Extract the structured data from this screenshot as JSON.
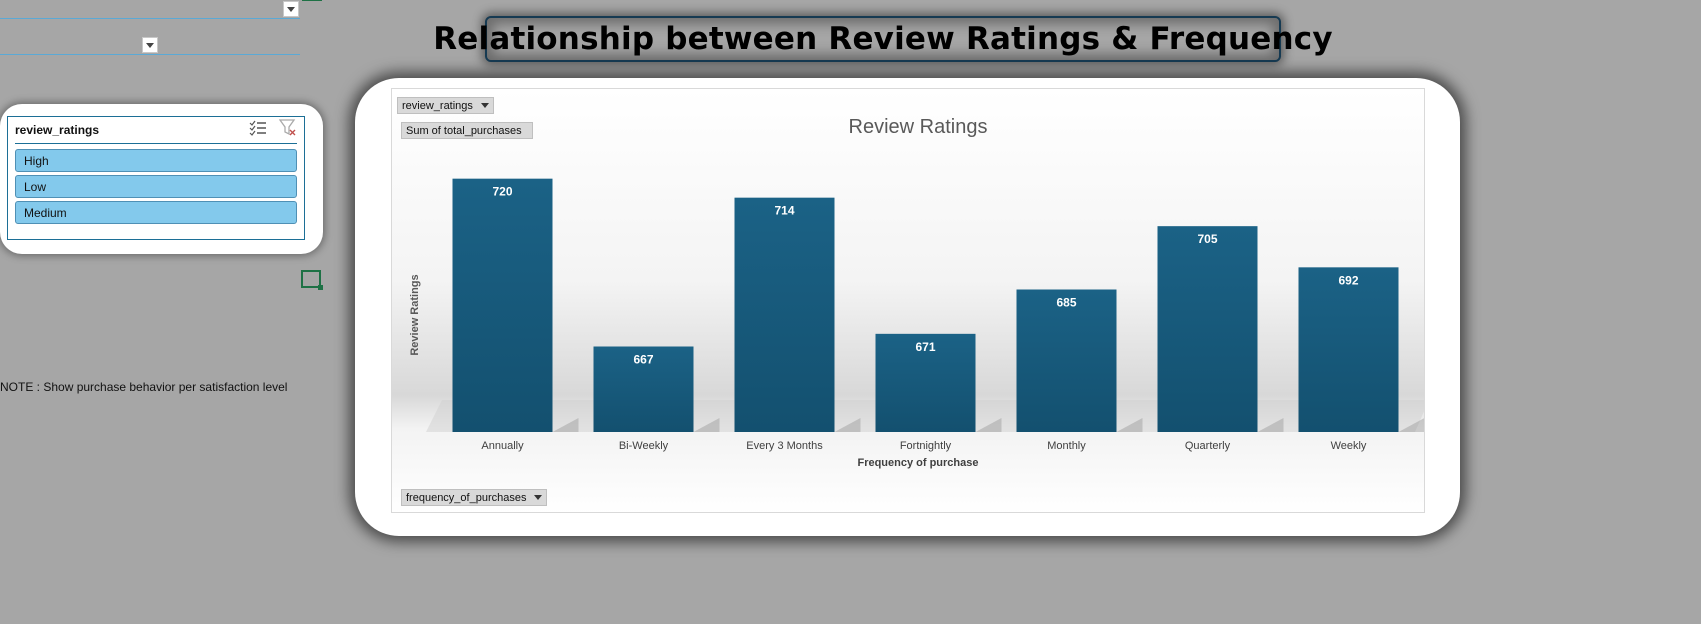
{
  "page": {
    "title": "Relationship between Review Ratings & Frequency",
    "note": "NOTE : Show purchase behavior per satisfaction level"
  },
  "slicer": {
    "title": "review_ratings",
    "items": [
      {
        "label": "High"
      },
      {
        "label": "Low"
      },
      {
        "label": "Medium"
      }
    ],
    "item_color": "#83c9ec"
  },
  "pivot_buttons": {
    "filter": "review_ratings",
    "values": "Sum of total_purchases",
    "axis": "frequency_of_purchases"
  },
  "chart_data": {
    "type": "bar",
    "title": "Review Ratings",
    "xlabel": "Frequency of purchase",
    "ylabel": "Review Ratings",
    "categories": [
      "Annually",
      "Bi-Weekly",
      "Every 3 Months",
      "Fortnightly",
      "Monthly",
      "Quarterly",
      "Weekly"
    ],
    "values": [
      720,
      667,
      714,
      671,
      685,
      705,
      692
    ],
    "data_labels": [
      "720",
      "667",
      "714",
      "671",
      "685",
      "705",
      "692"
    ],
    "ylim": [
      640,
      730
    ],
    "bar_color": "#1b5f84",
    "grid": false,
    "legend": "none"
  }
}
